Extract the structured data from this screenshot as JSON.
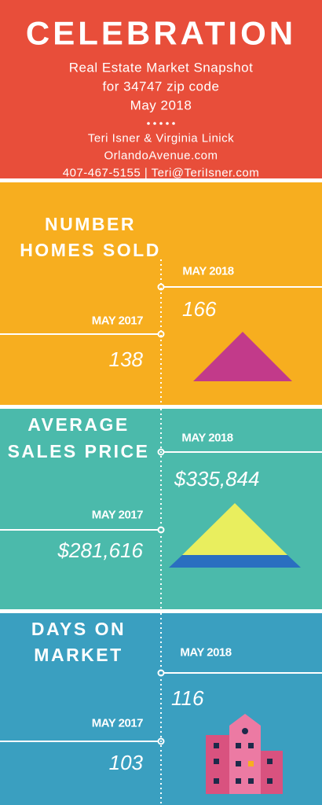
{
  "header": {
    "title": "CELEBRATION",
    "lines": [
      "Real Estate Market Snapshot",
      "for 34747 zip code",
      "May 2018"
    ],
    "contacts": [
      "Teri Isner & Virginia Linick",
      "OrlandoAvenue.com",
      "407-467-5155 | Teri@TeriIsner.com"
    ]
  },
  "sections": [
    {
      "title": [
        "NUMBER",
        "HOMES SOLD"
      ],
      "current_label": "MAY 2018",
      "current_value": "166",
      "previous_label": "MAY 2017",
      "previous_value": "138"
    },
    {
      "title": [
        "AVERAGE",
        "SALES PRICE"
      ],
      "current_label": "MAY 2018",
      "current_value": "$335,844",
      "previous_label": "MAY 2017",
      "previous_value": "$281,616"
    },
    {
      "title": [
        "DAYS ON",
        "MARKET"
      ],
      "current_label": "MAY 2018",
      "current_value": "116",
      "previous_label": "MAY 2017",
      "previous_value": "103"
    }
  ]
}
